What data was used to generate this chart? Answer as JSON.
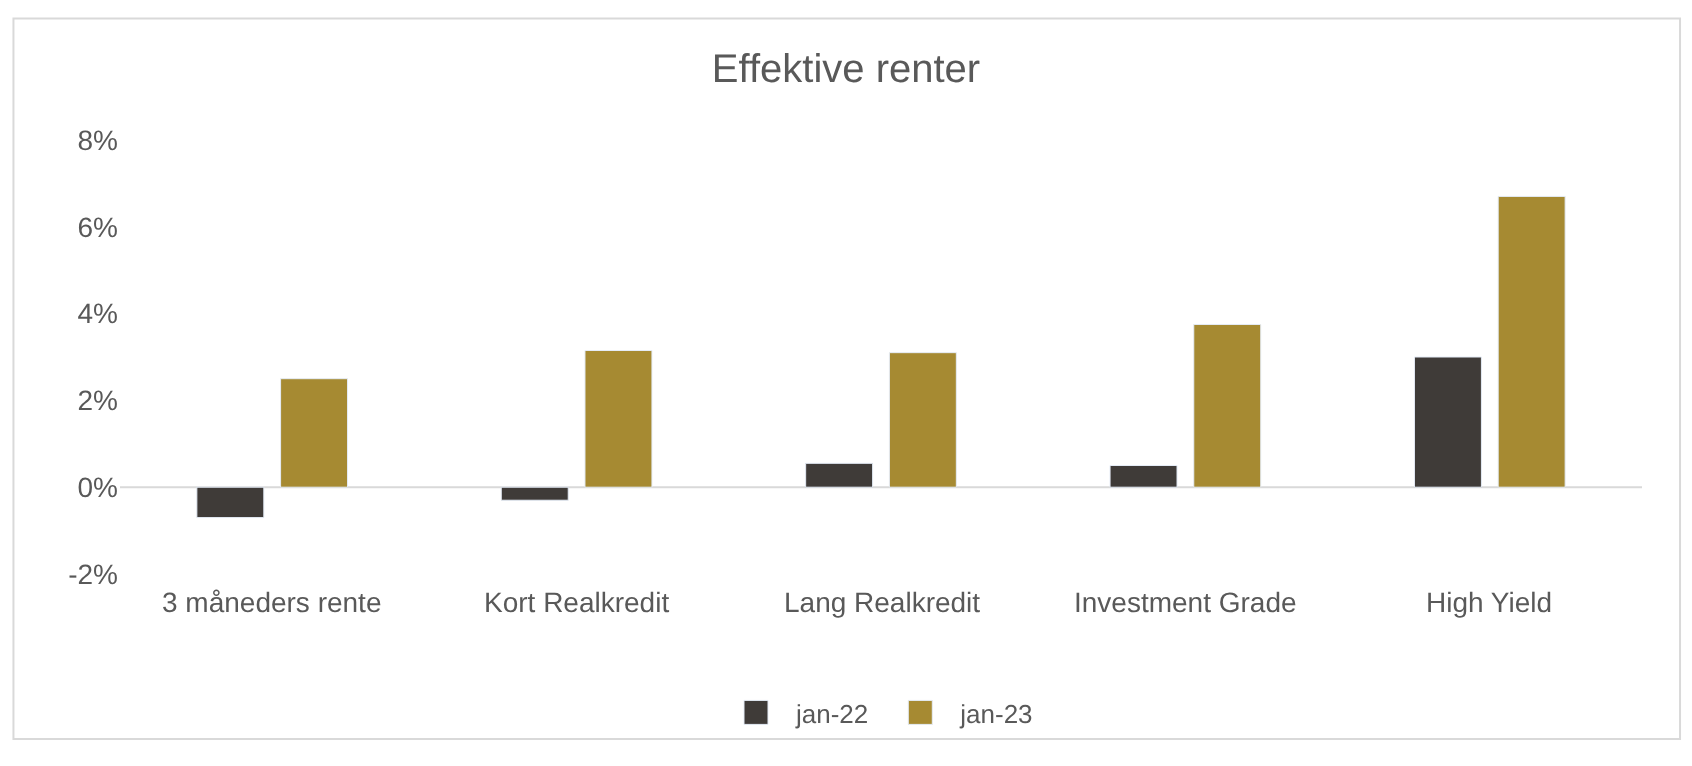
{
  "chart_data": {
    "type": "bar",
    "title": "Effektive renter",
    "categories": [
      "3 måneders rente",
      "Kort Realkredit",
      "Lang Realkredit",
      "Investment Grade",
      "High Yield"
    ],
    "series": [
      {
        "name": "jan-22",
        "color": "#3f3b38",
        "values": [
          -0.7,
          -0.3,
          0.55,
          0.5,
          3.0
        ]
      },
      {
        "name": "jan-23",
        "color": "#a68a32",
        "values": [
          2.5,
          3.15,
          3.1,
          3.75,
          6.7
        ]
      }
    ],
    "ylim": [
      -2,
      8
    ],
    "yticks": [
      {
        "value": -2,
        "label": "-2%"
      },
      {
        "value": 0,
        "label": "0%"
      },
      {
        "value": 2,
        "label": "2%"
      },
      {
        "value": 4,
        "label": "4%"
      },
      {
        "value": 6,
        "label": "6%"
      },
      {
        "value": 8,
        "label": "8%"
      }
    ],
    "ref_lines": [
      {
        "axis": "y",
        "value": 0,
        "color": "#d9d9d9"
      }
    ],
    "grid": false,
    "legend": "bottom"
  }
}
